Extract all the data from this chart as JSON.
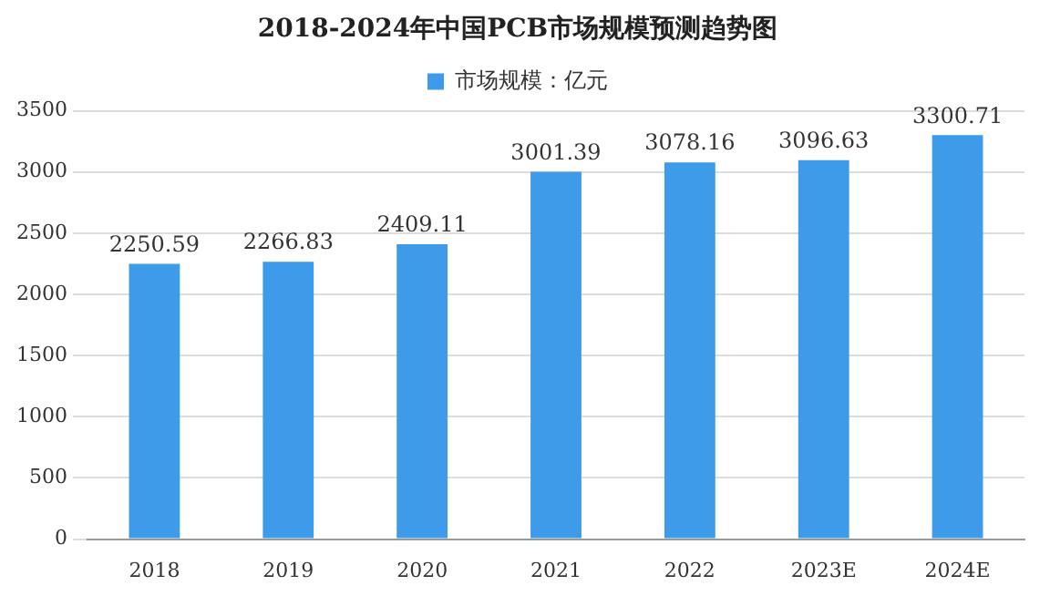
{
  "chart_data": {
    "type": "bar",
    "title": "2018-2024年中国PCB市场规模预测趋势图",
    "categories": [
      "2018",
      "2019",
      "2020",
      "2021",
      "2022",
      "2023E",
      "2024E"
    ],
    "series": [
      {
        "name": "市场规模：亿元",
        "color": "#3d9be9",
        "values": [
          2250.59,
          2266.83,
          2409.11,
          3001.39,
          3078.16,
          3096.63,
          3300.71
        ]
      }
    ],
    "ylim": [
      0,
      3500
    ],
    "yticks": [
      0,
      500,
      1000,
      1500,
      2000,
      2500,
      3000,
      3500
    ],
    "grid": "y",
    "legend": "top",
    "data_labels": true
  }
}
